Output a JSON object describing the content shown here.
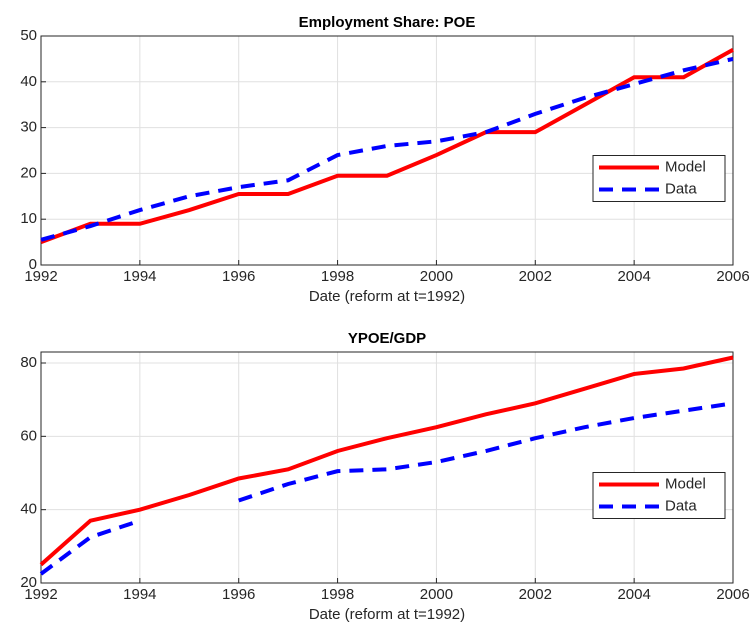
{
  "chart_data": [
    {
      "type": "line",
      "title": "Employment Share: POE",
      "x_label": "Date (reform at t=1992)",
      "x": [
        1992,
        1993,
        1994,
        1995,
        1996,
        1997,
        1998,
        1999,
        2000,
        2001,
        2002,
        2003,
        2004,
        2005,
        2006
      ],
      "series": [
        {
          "name": "Model",
          "color": "#ff0000",
          "dash": "solid",
          "values": [
            5,
            9,
            9,
            12,
            15.5,
            15.5,
            19.5,
            19.5,
            24,
            29,
            29,
            35,
            41,
            41,
            47
          ]
        },
        {
          "name": "Data",
          "color": "#0000ff",
          "dash": "dashed",
          "values": [
            5.5,
            8.5,
            12,
            15,
            17,
            18.5,
            24,
            26,
            27,
            29,
            33,
            36.5,
            39.5,
            42.5,
            45
          ]
        }
      ],
      "xlim": [
        1992,
        2006
      ],
      "xticks": [
        1992,
        1994,
        1996,
        1998,
        2000,
        2002,
        2004,
        2006
      ],
      "ylim": [
        0,
        50
      ],
      "yticks": [
        0,
        10,
        20,
        30,
        40,
        50
      ],
      "grid": true,
      "legend": "east"
    },
    {
      "type": "line",
      "title": "YPOE/GDP",
      "x_label": "Date (reform at t=1992)",
      "x": [
        1992,
        1993,
        1994,
        1995,
        1996,
        1997,
        1998,
        1999,
        2000,
        2001,
        2002,
        2003,
        2004,
        2005,
        2006
      ],
      "series": [
        {
          "name": "Model",
          "color": "#ff0000",
          "dash": "solid",
          "values": [
            25,
            37,
            40,
            44,
            48.5,
            51,
            56,
            59.5,
            62.5,
            66,
            69,
            73,
            77,
            78.5,
            81.5
          ]
        },
        {
          "name": "Data",
          "color": "#0000ff",
          "dash": "dashed",
          "values": [
            22.5,
            32.5,
            37,
            null,
            42.5,
            47,
            50.5,
            51,
            53,
            56,
            59.5,
            62.5,
            65,
            67,
            69
          ]
        }
      ],
      "xlim": [
        1992,
        2006
      ],
      "xticks": [
        1992,
        1994,
        1996,
        1998,
        2000,
        2002,
        2004,
        2006
      ],
      "ylim": [
        20,
        83
      ],
      "yticks": [
        20,
        40,
        60,
        80
      ],
      "grid": true,
      "legend": "east"
    }
  ]
}
